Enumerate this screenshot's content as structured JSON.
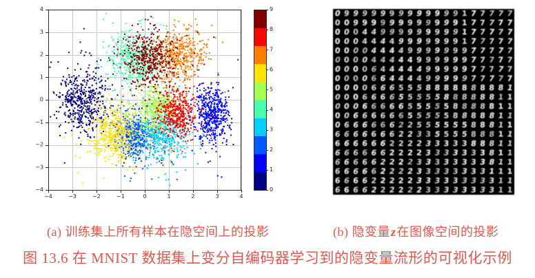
{
  "figure": {
    "caption_a": "(a) 训练集上所有样本在隐空间上的投影",
    "caption_b_prefix": "(b) 隐变量",
    "caption_b_var": "z",
    "caption_b_suffix": "在图像空间的投影",
    "title": "图 13.6  在 MNIST 数据集上变分自编码器学习到的隐变量流形的可视化示例",
    "caption_color": "#de584e"
  },
  "chart_data": [
    {
      "type": "scatter",
      "title": "",
      "xlabel": "",
      "ylabel": "",
      "xlim": [
        -4,
        4
      ],
      "ylim": [
        -4,
        4
      ],
      "xticks": [
        -4,
        -3,
        -2,
        -1,
        0,
        1,
        2,
        3,
        4
      ],
      "yticks": [
        -4,
        -3,
        -2,
        -1,
        0,
        1,
        2,
        3,
        4
      ],
      "xtick_labels": [
        "−4",
        "−3",
        "−2",
        "−1",
        "0",
        "1",
        "2",
        "3",
        "4"
      ],
      "ytick_labels": [
        "−4",
        "−3",
        "−2",
        "−1",
        "0",
        "1",
        "2",
        "3",
        "4"
      ],
      "grid": true,
      "grid_color": "#c9c9c9",
      "frame_color": "#2b2b2b",
      "marker_size": 2,
      "colorbar": {
        "position": "right",
        "tick_labels": [
          "0",
          "1",
          "2",
          "3",
          "4",
          "5",
          "6",
          "7",
          "8",
          "9"
        ],
        "colors": [
          "#000083",
          "#0004f5",
          "#0058ff",
          "#00d0ff",
          "#49ffad",
          "#a4ff53",
          "#ffe302",
          "#ff7e00",
          "#f40b00",
          "#840000"
        ]
      },
      "clusters": [
        {
          "digit": 0,
          "color": "#000083",
          "center": [
            -2.55,
            -0.2
          ],
          "std": [
            0.52,
            0.62
          ],
          "n": 420,
          "halo_center": [
            -2.35,
            0.35
          ],
          "halo_std": [
            0.7,
            1.0
          ],
          "halo_n": 90
        },
        {
          "digit": 1,
          "color": "#0004f5",
          "center": [
            2.8,
            -0.7
          ],
          "std": [
            0.36,
            0.6
          ],
          "n": 430,
          "halo_center": [
            2.75,
            -0.8
          ],
          "halo_std": [
            0.5,
            1.0
          ],
          "halo_n": 70
        },
        {
          "digit": 2,
          "color": "#0058ff",
          "center": [
            -0.4,
            -1.6
          ],
          "std": [
            0.38,
            0.5
          ],
          "n": 400,
          "halo_center": [
            -0.45,
            -1.7
          ],
          "halo_std": [
            0.55,
            0.95
          ],
          "halo_n": 60
        },
        {
          "digit": 3,
          "color": "#00d0ff",
          "center": [
            0.7,
            -1.55
          ],
          "std": [
            0.5,
            0.5
          ],
          "n": 400,
          "halo_center": [
            0.75,
            -1.7
          ],
          "halo_std": [
            0.8,
            0.95
          ],
          "halo_n": 70
        },
        {
          "digit": 4,
          "color": "#49ffad",
          "center": [
            -0.45,
            1.9
          ],
          "std": [
            0.55,
            0.58
          ],
          "n": 420,
          "halo_center": [
            -0.3,
            1.2
          ],
          "halo_std": [
            0.95,
            1.5
          ],
          "halo_n": 80
        },
        {
          "digit": 5,
          "color": "#a4ff53",
          "center": [
            0.5,
            -0.35
          ],
          "std": [
            0.42,
            0.5
          ],
          "n": 400,
          "halo_center": [
            0.45,
            -0.8
          ],
          "halo_std": [
            0.65,
            1.1
          ],
          "halo_n": 60
        },
        {
          "digit": 6,
          "color": "#ffe302",
          "center": [
            -1.25,
            -1.45
          ],
          "std": [
            0.45,
            0.6
          ],
          "n": 410,
          "halo_center": [
            -1.45,
            -1.6
          ],
          "halo_std": [
            0.8,
            0.95
          ],
          "halo_n": 70
        },
        {
          "digit": 7,
          "color": "#ff7e00",
          "center": [
            1.45,
            2.0
          ],
          "std": [
            0.5,
            0.55
          ],
          "n": 420,
          "halo_center": [
            1.35,
            1.9
          ],
          "halo_std": [
            0.75,
            0.8
          ],
          "halo_n": 60
        },
        {
          "digit": 8,
          "color": "#f40b00",
          "center": [
            1.3,
            -0.55
          ],
          "std": [
            0.38,
            0.5
          ],
          "n": 410,
          "halo_center": [
            1.2,
            -0.9
          ],
          "halo_std": [
            0.6,
            1.0
          ],
          "halo_n": 60
        },
        {
          "digit": 9,
          "color": "#840000",
          "center": [
            0.2,
            1.9
          ],
          "std": [
            0.52,
            0.6
          ],
          "n": 420,
          "halo_center": [
            0.3,
            1.2
          ],
          "halo_std": [
            1.1,
            1.6
          ],
          "halo_n": 90
        }
      ]
    },
    {
      "type": "heatmap",
      "subtype": "mnist-digit-manifold-grid",
      "rows": 20,
      "cols": 20,
      "background": "#000000",
      "ink": "#e9e9e9",
      "digit_rows": [
        "09999999999999177777",
        "00999999999999177777",
        "00044999999999177777",
        "00044449999999177777",
        "00004444999999977777",
        "00004444499999977777",
        "00006444449999977777",
        "00006644449999977777",
        "00006665558888888881",
        "00066665555588888811",
        "00066666555558888811",
        "00666666555558888811",
        "06666662255555588811",
        "66666662233555588811",
        "66666622223333388811",
        "66666622223333333811",
        "66666222233333333811",
        "66666222233333333111",
        "66662222233333333311",
        "66662222223333333311"
      ]
    }
  ]
}
